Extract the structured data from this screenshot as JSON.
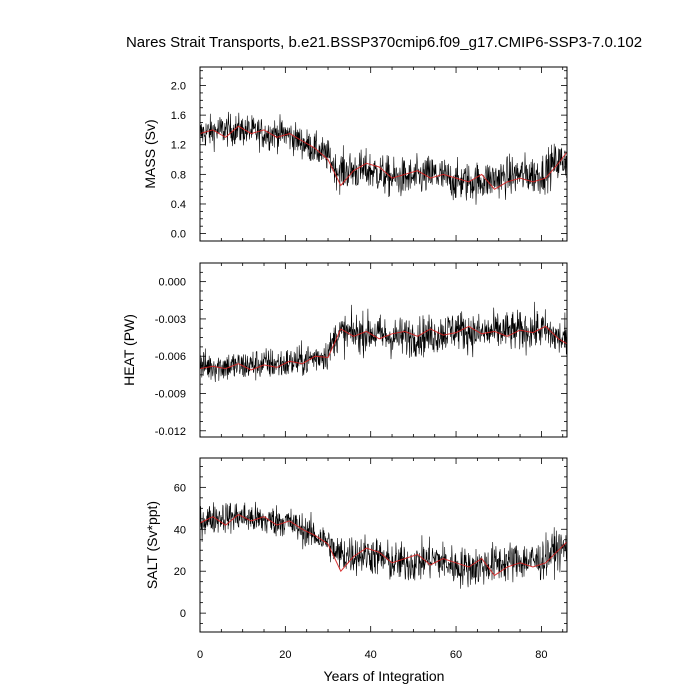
{
  "title": "Nares Strait Transports, b.e21.BSSP370cmip6.f09_g17.CMIP6-SSP3-7.0.102",
  "colors": {
    "raw": "#000000",
    "smooth": "#d62020",
    "frame": "#000000"
  },
  "chart_data": [
    {
      "type": "line",
      "ylabel": "MASS (Sv)",
      "xlim": [
        0,
        86
      ],
      "ylim": [
        -0.1,
        2.25
      ],
      "yticks": [
        "2.0",
        "1.6",
        "1.2",
        "0.8",
        "0.4",
        "0.0"
      ],
      "ytick_values": [
        2.0,
        1.6,
        1.2,
        0.8,
        0.4,
        0.0
      ],
      "series": [
        {
          "role": "monthly",
          "color": "#000000",
          "x": [
            0,
            5,
            10,
            15,
            20,
            25,
            30,
            32,
            35,
            40,
            45,
            50,
            55,
            60,
            65,
            70,
            75,
            80,
            83,
            86
          ],
          "values": [
            1.35,
            1.4,
            1.4,
            1.35,
            1.35,
            1.2,
            1.05,
            0.85,
            0.85,
            0.85,
            0.75,
            0.75,
            0.8,
            0.7,
            0.7,
            0.75,
            0.8,
            0.8,
            0.95,
            1.0
          ]
        },
        {
          "role": "smoothed",
          "color": "#d62020",
          "x": [
            0,
            3,
            6,
            9,
            12,
            15,
            18,
            21,
            24,
            27,
            30,
            33,
            36,
            39,
            42,
            45,
            48,
            51,
            54,
            57,
            60,
            63,
            66,
            69,
            72,
            75,
            78,
            81,
            84,
            86
          ],
          "values": [
            1.35,
            1.4,
            1.3,
            1.45,
            1.35,
            1.4,
            1.3,
            1.35,
            1.25,
            1.15,
            1.0,
            0.65,
            0.85,
            0.95,
            0.9,
            0.75,
            0.8,
            0.85,
            0.75,
            0.8,
            0.75,
            0.7,
            0.8,
            0.6,
            0.7,
            0.75,
            0.7,
            0.75,
            0.95,
            1.1
          ]
        }
      ]
    },
    {
      "type": "line",
      "ylabel": "HEAT (PW)",
      "xlim": [
        0,
        86
      ],
      "ylim": [
        -0.0125,
        0.0015
      ],
      "yticks": [
        "0.000",
        "-0.003",
        "-0.006",
        "-0.009",
        "-0.012"
      ],
      "ytick_values": [
        0.0,
        -0.003,
        -0.006,
        -0.009,
        -0.012
      ],
      "series": [
        {
          "role": "monthly",
          "color": "#000000",
          "x": [
            0,
            5,
            10,
            15,
            20,
            25,
            30,
            32,
            35,
            40,
            45,
            50,
            55,
            60,
            65,
            70,
            75,
            80,
            83,
            86
          ],
          "values": [
            -0.0068,
            -0.0068,
            -0.0068,
            -0.0066,
            -0.0066,
            -0.0063,
            -0.0058,
            -0.0042,
            -0.0042,
            -0.0041,
            -0.0045,
            -0.0044,
            -0.0043,
            -0.0038,
            -0.0042,
            -0.004,
            -0.004,
            -0.0038,
            -0.0044,
            -0.0048
          ]
        },
        {
          "role": "smoothed",
          "color": "#d62020",
          "x": [
            0,
            3,
            6,
            9,
            12,
            15,
            18,
            21,
            24,
            27,
            30,
            33,
            36,
            39,
            42,
            45,
            48,
            51,
            54,
            57,
            60,
            63,
            66,
            69,
            72,
            75,
            78,
            81,
            84,
            86
          ],
          "values": [
            -0.007,
            -0.0068,
            -0.007,
            -0.0066,
            -0.0071,
            -0.0067,
            -0.0069,
            -0.0064,
            -0.0066,
            -0.006,
            -0.0061,
            -0.0038,
            -0.0044,
            -0.004,
            -0.0046,
            -0.0042,
            -0.004,
            -0.0044,
            -0.0038,
            -0.0043,
            -0.0041,
            -0.0036,
            -0.0042,
            -0.004,
            -0.0044,
            -0.0039,
            -0.0041,
            -0.0036,
            -0.0046,
            -0.005
          ]
        }
      ]
    },
    {
      "type": "line",
      "ylabel": "SALT (Sv*ppt)",
      "xlim": [
        0,
        86
      ],
      "ylim": [
        -9,
        74
      ],
      "yticks": [
        "60",
        "40",
        "20",
        "0"
      ],
      "ytick_values": [
        60,
        40,
        20,
        0
      ],
      "series": [
        {
          "role": "monthly",
          "color": "#000000",
          "x": [
            0,
            5,
            10,
            15,
            20,
            25,
            30,
            32,
            35,
            40,
            45,
            50,
            55,
            60,
            65,
            70,
            75,
            80,
            83,
            86
          ],
          "values": [
            44,
            46,
            46,
            44,
            44,
            39,
            34,
            28,
            28,
            28,
            24,
            24,
            26,
            22,
            22,
            24,
            25,
            25,
            30,
            31
          ]
        },
        {
          "role": "smoothed",
          "color": "#d62020",
          "x": [
            0,
            3,
            6,
            9,
            12,
            15,
            18,
            21,
            24,
            27,
            30,
            33,
            36,
            39,
            42,
            45,
            48,
            51,
            54,
            57,
            60,
            63,
            66,
            69,
            72,
            75,
            78,
            81,
            84,
            86
          ],
          "values": [
            43,
            46,
            42,
            47,
            44,
            46,
            42,
            44,
            40,
            37,
            33,
            20,
            27,
            31,
            29,
            24,
            26,
            28,
            23,
            26,
            24,
            22,
            26,
            18,
            22,
            24,
            22,
            24,
            30,
            34
          ]
        }
      ]
    }
  ],
  "xaxis": {
    "label": "Years of Integration",
    "ticks": [
      "0",
      "20",
      "40",
      "60",
      "80"
    ],
    "tick_values": [
      0,
      20,
      40,
      60,
      80
    ]
  }
}
